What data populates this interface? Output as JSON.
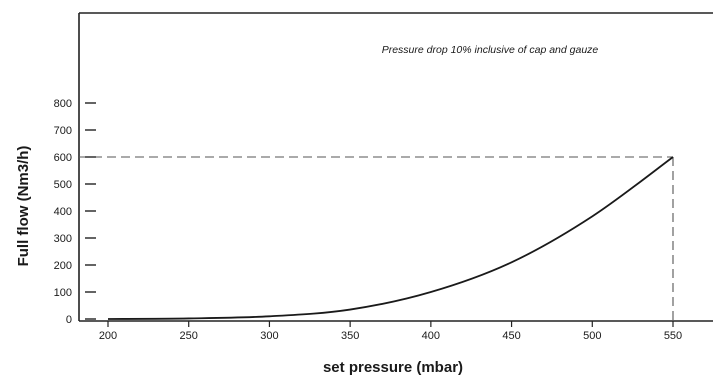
{
  "chart_data": {
    "type": "line",
    "title": "",
    "annotation": "Pressure drop 10% inclusive of cap and gauze",
    "xlabel": "set pressure (mbar)",
    "ylabel": "Full flow (Nm3/h)",
    "xlim": [
      200,
      550
    ],
    "ylim": [
      0,
      800
    ],
    "x_ticks": [
      200,
      250,
      300,
      350,
      400,
      450,
      500,
      550
    ],
    "y_ticks": [
      0,
      100,
      200,
      300,
      400,
      500,
      600,
      700,
      800
    ],
    "grid": false,
    "legend": "none",
    "series": [
      {
        "x": [
          200,
          250,
          300,
          350,
          400,
          450,
          500,
          550
        ],
        "values": [
          0,
          2,
          10,
          35,
          100,
          210,
          380,
          600
        ],
        "color": "#1a1a1a"
      }
    ],
    "reference_point": {
      "x": 550,
      "y": 600
    }
  }
}
